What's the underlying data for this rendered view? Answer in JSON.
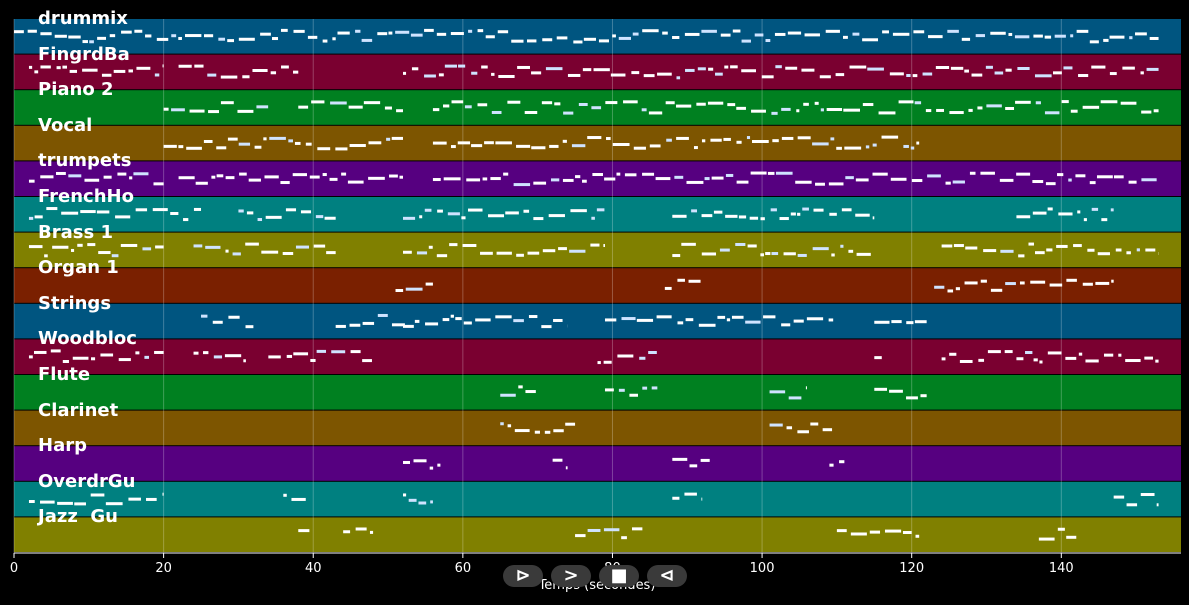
{
  "tracks": [
    {
      "name": "drummix",
      "color": "#005580"
    },
    {
      "name": "FingrdBa",
      "color": "#7a0030"
    },
    {
      "name": "Piano 2",
      "color": "#008020"
    },
    {
      "name": "Vocal",
      "color": "#7d5500"
    },
    {
      "name": "trumpets",
      "color": "#560080"
    },
    {
      "name": "FrenchHo",
      "color": "#008080"
    },
    {
      "name": "Brass 1",
      "color": "#808000"
    },
    {
      "name": "Organ 1",
      "color": "#7a2000"
    },
    {
      "name": "Strings",
      "color": "#005580"
    },
    {
      "name": "Woodbloc",
      "color": "#7a0030"
    },
    {
      "name": "Flute",
      "color": "#008020"
    },
    {
      "name": "Clarinet",
      "color": "#7d5500"
    },
    {
      "name": "Harp",
      "color": "#560080"
    },
    {
      "name": "OverdrGu",
      "color": "#008080"
    },
    {
      "name": "Jazz  Gu",
      "color": "#808000"
    }
  ],
  "axis": {
    "xmin": 0,
    "xmax": 156,
    "ticks": [
      "0",
      "20",
      "40",
      "60",
      "80",
      "100",
      "120",
      "140"
    ],
    "title": "Temps (secondes)"
  },
  "controls": {
    "play": "⊳",
    "forward": ">",
    "stop": "■",
    "rewind": "⊲"
  },
  "segments": [
    [
      [
        0,
        153
      ]
    ],
    [
      [
        2,
        20
      ],
      [
        22,
        38
      ],
      [
        52,
        153
      ]
    ],
    [
      [
        20,
        34
      ],
      [
        38,
        52
      ],
      [
        56,
        153
      ]
    ],
    [
      [
        20,
        52
      ],
      [
        56,
        121
      ]
    ],
    [
      [
        2,
        20
      ],
      [
        22,
        52
      ],
      [
        56,
        153
      ]
    ],
    [
      [
        2,
        25
      ],
      [
        30,
        43
      ],
      [
        52,
        79
      ],
      [
        88,
        115
      ],
      [
        134,
        147
      ]
    ],
    [
      [
        2,
        20
      ],
      [
        24,
        43
      ],
      [
        52,
        79
      ],
      [
        88,
        115
      ],
      [
        124,
        153
      ]
    ],
    [
      [
        51,
        56
      ],
      [
        87,
        92
      ],
      [
        123,
        147
      ]
    ],
    [
      [
        25,
        32
      ],
      [
        43,
        53
      ],
      [
        52,
        74
      ],
      [
        79,
        110
      ],
      [
        115,
        122
      ]
    ],
    [
      [
        2,
        20
      ],
      [
        24,
        31
      ],
      [
        34,
        48
      ],
      [
        78,
        86
      ],
      [
        115,
        116
      ],
      [
        124,
        153
      ]
    ],
    [
      [
        65,
        70
      ],
      [
        79,
        86
      ],
      [
        101,
        106
      ],
      [
        115,
        122
      ]
    ],
    [
      [
        65,
        75
      ],
      [
        101,
        110
      ]
    ],
    [
      [
        52,
        57
      ],
      [
        72,
        74
      ],
      [
        88,
        93
      ],
      [
        109,
        111
      ]
    ],
    [
      [
        2,
        20
      ],
      [
        36,
        39
      ],
      [
        52,
        56
      ],
      [
        88,
        92
      ],
      [
        147,
        153
      ]
    ],
    [
      [
        38,
        40
      ],
      [
        44,
        48
      ],
      [
        75,
        84
      ],
      [
        110,
        121
      ],
      [
        137,
        142
      ]
    ]
  ]
}
